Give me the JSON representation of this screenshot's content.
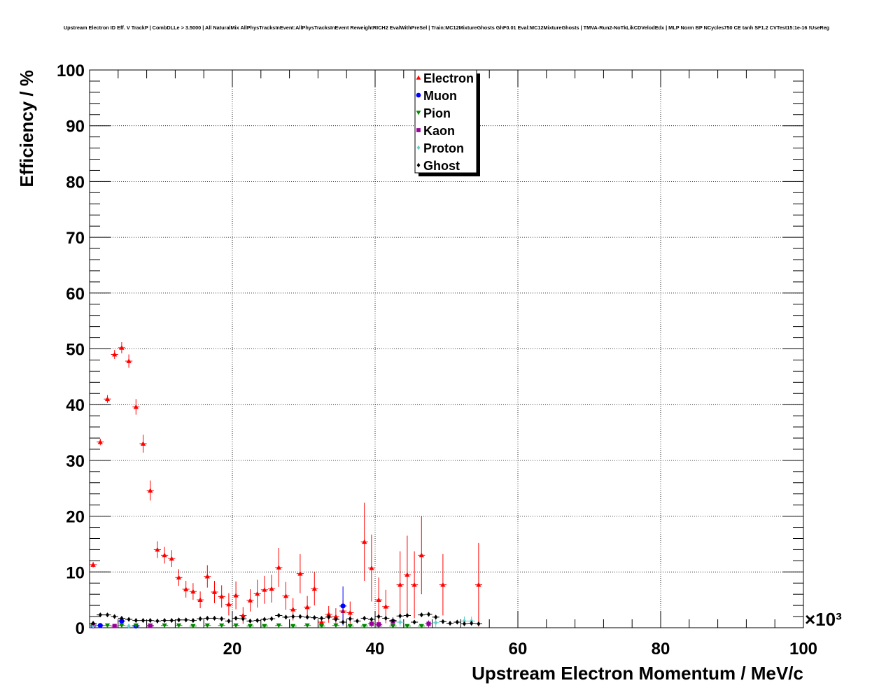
{
  "chart_data": {
    "type": "scatter",
    "title": "Upstream Electron ID Eff. V TrackP | CombDLLe > 3.5000 | All NaturalMix AllPhysTracksInEvent:AllPhysTracksInEvent ReweightRICH2 EvalWithPreSel | Train:MC12MixtureGhosts GhF0.01 Eval:MC12MixtureGhosts | TMVA-Run2-NoTkLikCDVelodEdx | MLP Norm BP NCycles750 CE tanh SF1.2 CVTest15:1e-16 !UseReg",
    "xlabel": "Upstream Electron Momentum / MeV/c",
    "ylabel": "Efficiency / %",
    "x_multiplier_label": "×10³",
    "xlim": [
      0,
      100
    ],
    "ylim": [
      0,
      100
    ],
    "x_ticks": [
      "20",
      "40",
      "60",
      "80",
      "100"
    ],
    "y_ticks": [
      "0",
      "10",
      "20",
      "30",
      "40",
      "50",
      "60",
      "70",
      "80",
      "90",
      "100"
    ],
    "grid": true,
    "legend_position": "top-center",
    "series": [
      {
        "name": "Electron",
        "color": "#ff0000",
        "marker": "triangle-up",
        "points": [
          {
            "x": 0.5,
            "y": 11.3,
            "err": 0.5
          },
          {
            "x": 1.5,
            "y": 33.3,
            "err": 0.6
          },
          {
            "x": 2.5,
            "y": 41.0,
            "err": 0.7
          },
          {
            "x": 3.5,
            "y": 49.0,
            "err": 0.8
          },
          {
            "x": 4.5,
            "y": 50.2,
            "err": 1.0
          },
          {
            "x": 5.5,
            "y": 47.8,
            "err": 1.2
          },
          {
            "x": 6.5,
            "y": 39.6,
            "err": 1.4
          },
          {
            "x": 7.5,
            "y": 33.0,
            "err": 1.6
          },
          {
            "x": 8.5,
            "y": 24.6,
            "err": 1.8
          },
          {
            "x": 9.5,
            "y": 14.0,
            "err": 1.5
          },
          {
            "x": 10.5,
            "y": 13.0,
            "err": 1.5
          },
          {
            "x": 11.5,
            "y": 12.4,
            "err": 1.5
          },
          {
            "x": 12.5,
            "y": 9.0,
            "err": 1.5
          },
          {
            "x": 13.5,
            "y": 6.9,
            "err": 1.5
          },
          {
            "x": 14.5,
            "y": 6.5,
            "err": 1.5
          },
          {
            "x": 15.5,
            "y": 5.0,
            "err": 1.5
          },
          {
            "x": 16.5,
            "y": 9.2,
            "err": 2.0
          },
          {
            "x": 17.5,
            "y": 6.4,
            "err": 2.0
          },
          {
            "x": 18.5,
            "y": 5.6,
            "err": 2.0
          },
          {
            "x": 19.5,
            "y": 4.2,
            "err": 2.0
          },
          {
            "x": 20.5,
            "y": 5.8,
            "err": 2.5
          },
          {
            "x": 21.5,
            "y": 2.2,
            "err": 1.5
          },
          {
            "x": 22.5,
            "y": 4.9,
            "err": 2.0
          },
          {
            "x": 23.5,
            "y": 6.1,
            "err": 2.5
          },
          {
            "x": 24.5,
            "y": 6.8,
            "err": 2.5
          },
          {
            "x": 25.5,
            "y": 7.0,
            "err": 2.5
          },
          {
            "x": 26.5,
            "y": 10.8,
            "err": 3.5
          },
          {
            "x": 27.5,
            "y": 5.7,
            "err": 2.5
          },
          {
            "x": 28.5,
            "y": 3.3,
            "err": 2.0
          },
          {
            "x": 29.5,
            "y": 9.7,
            "err": 3.5
          },
          {
            "x": 30.5,
            "y": 3.7,
            "err": 2.0
          },
          {
            "x": 31.5,
            "y": 7.0,
            "err": 3.0
          },
          {
            "x": 32.5,
            "y": 1.0,
            "err": 1.0
          },
          {
            "x": 33.5,
            "y": 2.4,
            "err": 1.5
          },
          {
            "x": 34.5,
            "y": 2.0,
            "err": 1.5
          },
          {
            "x": 35.5,
            "y": 3.0,
            "err": 2.0
          },
          {
            "x": 36.5,
            "y": 2.7,
            "err": 2.0
          },
          {
            "x": 38.5,
            "y": 15.4,
            "err": 7.0
          },
          {
            "x": 39.5,
            "y": 10.7,
            "err": 6.0
          },
          {
            "x": 40.5,
            "y": 5.0,
            "err": 4.0
          },
          {
            "x": 41.5,
            "y": 3.8,
            "err": 3.0
          },
          {
            "x": 43.5,
            "y": 7.7,
            "err": 6.0
          },
          {
            "x": 44.5,
            "y": 9.5,
            "err": 7.0
          },
          {
            "x": 45.5,
            "y": 7.7,
            "err": 6.0
          },
          {
            "x": 46.5,
            "y": 13.0,
            "err": 7.0
          },
          {
            "x": 49.5,
            "y": 7.7,
            "err": 5.5
          },
          {
            "x": 54.5,
            "y": 7.7,
            "err": 7.5
          }
        ]
      },
      {
        "name": "Muon",
        "color": "#0000ff",
        "marker": "circle",
        "points": [
          {
            "x": 0.5,
            "y": 0.3,
            "err": 0.2
          },
          {
            "x": 1.5,
            "y": 0.4,
            "err": 0.2
          },
          {
            "x": 4.5,
            "y": 1.2,
            "err": 0.4
          },
          {
            "x": 6.5,
            "y": 0.3,
            "err": 0.2
          },
          {
            "x": 35.5,
            "y": 3.9,
            "err": 3.5
          }
        ]
      },
      {
        "name": "Pion",
        "color": "#008800",
        "marker": "triangle-down",
        "points": [
          {
            "x": 0.5,
            "y": 0.5
          },
          {
            "x": 2.5,
            "y": 0.4
          },
          {
            "x": 4.5,
            "y": 0.4
          },
          {
            "x": 6.5,
            "y": 0.4
          },
          {
            "x": 8.5,
            "y": 0.4
          },
          {
            "x": 10.5,
            "y": 0.4
          },
          {
            "x": 12.5,
            "y": 0.4
          },
          {
            "x": 14.5,
            "y": 0.3
          },
          {
            "x": 16.5,
            "y": 0.4
          },
          {
            "x": 18.5,
            "y": 0.4
          },
          {
            "x": 20.5,
            "y": 0.4
          },
          {
            "x": 22.5,
            "y": 0.3
          },
          {
            "x": 24.5,
            "y": 0.3
          },
          {
            "x": 26.5,
            "y": 0.4
          },
          {
            "x": 28.5,
            "y": 0.3
          },
          {
            "x": 30.5,
            "y": 0.4
          },
          {
            "x": 32.5,
            "y": 0.3
          },
          {
            "x": 34.5,
            "y": 0.4
          },
          {
            "x": 36.5,
            "y": 0.3
          },
          {
            "x": 38.5,
            "y": 0.3
          },
          {
            "x": 40.5,
            "y": 0.3
          },
          {
            "x": 42.5,
            "y": 0.3
          },
          {
            "x": 44.5,
            "y": 0.3
          },
          {
            "x": 46.5,
            "y": 0.3
          }
        ]
      },
      {
        "name": "Kaon",
        "color": "#990099",
        "marker": "square",
        "points": [
          {
            "x": 0.5,
            "y": 0.3
          },
          {
            "x": 3.5,
            "y": 0.3
          },
          {
            "x": 8.5,
            "y": 0.3
          },
          {
            "x": 39.5,
            "y": 0.7,
            "err": 0.6
          },
          {
            "x": 40.5,
            "y": 0.6,
            "err": 0.6
          },
          {
            "x": 42.5,
            "y": 1.1,
            "err": 0.8
          },
          {
            "x": 47.5,
            "y": 0.7,
            "err": 0.6
          }
        ]
      },
      {
        "name": "Proton",
        "color": "#66cccc",
        "marker": "diamond",
        "points": [
          {
            "x": 0.5,
            "y": 0.3
          },
          {
            "x": 5.5,
            "y": 0.3
          },
          {
            "x": 43.5,
            "y": 1.0,
            "err": 0.8
          },
          {
            "x": 48.5,
            "y": 0.9,
            "err": 0.8
          },
          {
            "x": 52.5,
            "y": 1.2,
            "err": 0.8
          },
          {
            "x": 53.5,
            "y": 1.2,
            "err": 0.8
          }
        ]
      },
      {
        "name": "Ghost",
        "color": "#000000",
        "marker": "diamond",
        "points": [
          {
            "x": 0.5,
            "y": 0.8,
            "err": 0.1
          },
          {
            "x": 1.5,
            "y": 2.3,
            "err": 0.1
          },
          {
            "x": 2.5,
            "y": 2.3,
            "err": 0.1
          },
          {
            "x": 3.5,
            "y": 2.0,
            "err": 0.1
          },
          {
            "x": 4.5,
            "y": 1.7,
            "err": 0.1
          },
          {
            "x": 5.5,
            "y": 1.5,
            "err": 0.1
          },
          {
            "x": 6.5,
            "y": 1.3,
            "err": 0.1
          },
          {
            "x": 7.5,
            "y": 1.3,
            "err": 0.1
          },
          {
            "x": 8.5,
            "y": 1.3,
            "err": 0.1
          },
          {
            "x": 9.5,
            "y": 1.2,
            "err": 0.1
          },
          {
            "x": 10.5,
            "y": 1.3,
            "err": 0.1
          },
          {
            "x": 11.5,
            "y": 1.3,
            "err": 0.1
          },
          {
            "x": 12.5,
            "y": 1.4,
            "err": 0.1
          },
          {
            "x": 13.5,
            "y": 1.4,
            "err": 0.1
          },
          {
            "x": 14.5,
            "y": 1.3,
            "err": 0.1
          },
          {
            "x": 15.5,
            "y": 1.6,
            "err": 0.1
          },
          {
            "x": 16.5,
            "y": 1.7,
            "err": 0.1
          },
          {
            "x": 17.5,
            "y": 1.7,
            "err": 0.1
          },
          {
            "x": 18.5,
            "y": 1.6,
            "err": 0.1
          },
          {
            "x": 19.5,
            "y": 1.2,
            "err": 0.1
          },
          {
            "x": 20.5,
            "y": 1.7,
            "err": 0.1
          },
          {
            "x": 21.5,
            "y": 1.6,
            "err": 0.1
          },
          {
            "x": 22.5,
            "y": 1.2,
            "err": 0.1
          },
          {
            "x": 23.5,
            "y": 1.3,
            "err": 0.1
          },
          {
            "x": 24.5,
            "y": 1.5,
            "err": 0.1
          },
          {
            "x": 25.5,
            "y": 1.6,
            "err": 0.1
          },
          {
            "x": 26.5,
            "y": 2.2,
            "err": 0.2
          },
          {
            "x": 27.5,
            "y": 1.9,
            "err": 0.2
          },
          {
            "x": 28.5,
            "y": 2.0,
            "err": 0.2
          },
          {
            "x": 29.5,
            "y": 2.0,
            "err": 0.2
          },
          {
            "x": 30.5,
            "y": 1.9,
            "err": 0.2
          },
          {
            "x": 31.5,
            "y": 1.8,
            "err": 0.2
          },
          {
            "x": 32.5,
            "y": 1.7,
            "err": 0.2
          },
          {
            "x": 33.5,
            "y": 1.9,
            "err": 0.2
          },
          {
            "x": 34.5,
            "y": 1.5,
            "err": 0.2
          },
          {
            "x": 35.5,
            "y": 1.0,
            "err": 0.2
          },
          {
            "x": 36.5,
            "y": 1.6,
            "err": 0.2
          },
          {
            "x": 37.5,
            "y": 1.2,
            "err": 0.2
          },
          {
            "x": 38.5,
            "y": 1.7,
            "err": 0.2
          },
          {
            "x": 39.5,
            "y": 1.5,
            "err": 0.2
          },
          {
            "x": 40.5,
            "y": 2.0,
            "err": 0.3
          },
          {
            "x": 41.5,
            "y": 1.7,
            "err": 0.3
          },
          {
            "x": 42.5,
            "y": 1.3,
            "err": 0.3
          },
          {
            "x": 43.5,
            "y": 2.1,
            "err": 0.3
          },
          {
            "x": 44.5,
            "y": 2.2,
            "err": 0.3
          },
          {
            "x": 45.5,
            "y": 1.0,
            "err": 0.3
          },
          {
            "x": 46.5,
            "y": 2.3,
            "err": 0.3
          },
          {
            "x": 47.5,
            "y": 2.4,
            "err": 0.3
          },
          {
            "x": 48.5,
            "y": 1.9,
            "err": 0.3
          },
          {
            "x": 49.5,
            "y": 1.1,
            "err": 0.3
          },
          {
            "x": 50.5,
            "y": 0.8,
            "err": 0.3
          },
          {
            "x": 51.5,
            "y": 1.0,
            "err": 0.3
          },
          {
            "x": 52.5,
            "y": 0.7,
            "err": 0.3
          },
          {
            "x": 53.5,
            "y": 0.8,
            "err": 0.3
          },
          {
            "x": 54.5,
            "y": 0.7,
            "err": 0.3
          }
        ]
      }
    ]
  }
}
